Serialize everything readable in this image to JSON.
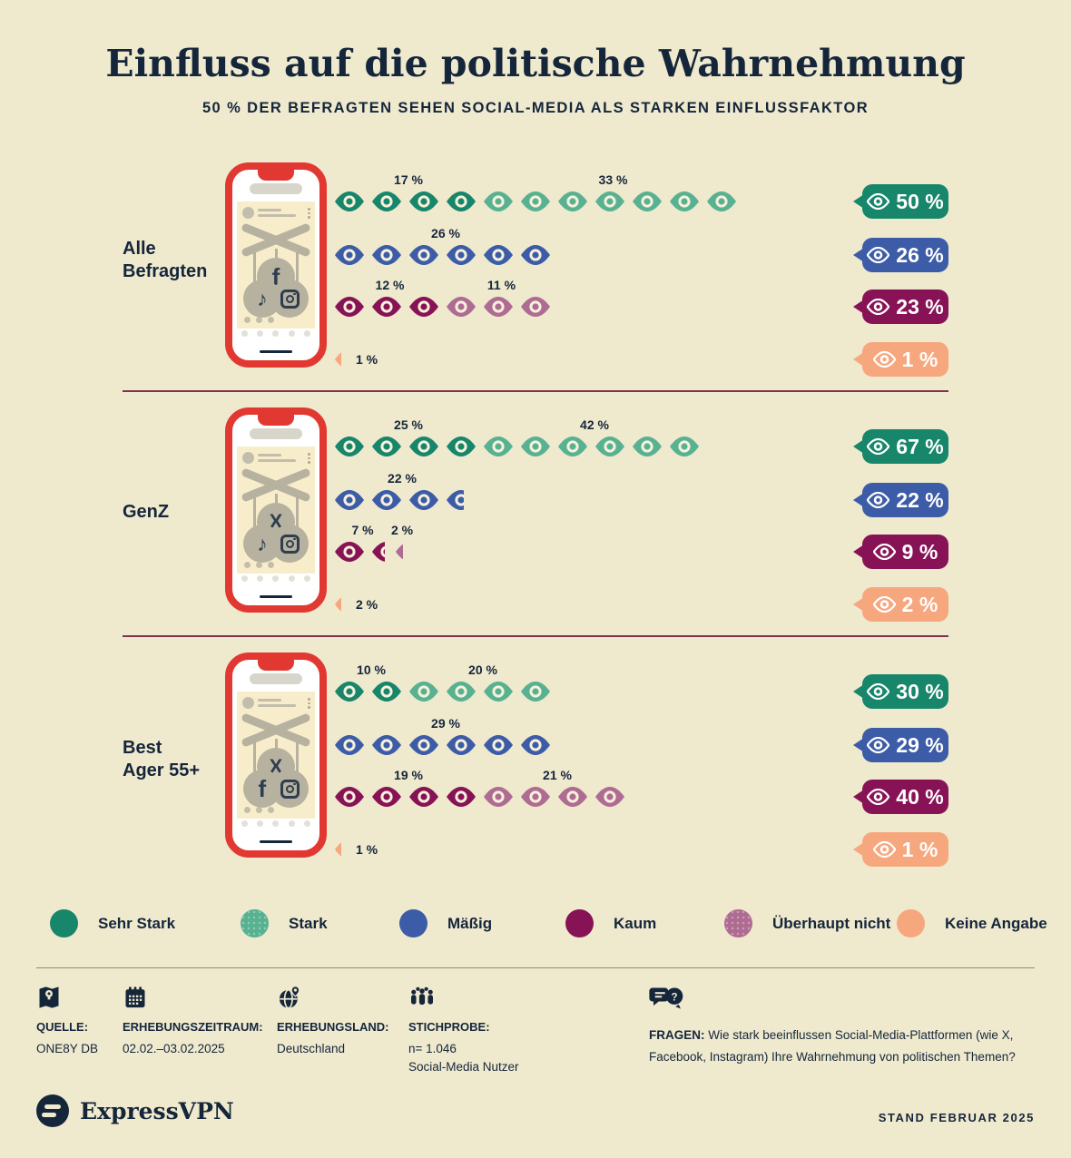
{
  "header": {
    "title": "Einfluss auf die politische Wahrnehmung",
    "subtitle": "50 % DER BEFRAGTEN SEHEN SOCIAL-MEDIA ALS STARKEN EINFLUSSFAKTOR"
  },
  "palette": {
    "background": "#EFE9CE",
    "ink": "#15263B",
    "sehr_stark": "#17866B",
    "stark": "#58B291",
    "maessig": "#3D5CA8",
    "kaum": "#871356",
    "ueberhaupt_nicht": "#AF6C92",
    "keine_angabe": "#F6A77D",
    "phone_red": "#E23832",
    "divider": "#823050"
  },
  "legend": [
    {
      "label": "Sehr Stark",
      "color_key": "sehr_stark",
      "dotted": false
    },
    {
      "label": "Stark",
      "color_key": "stark",
      "dotted": true
    },
    {
      "label": "Mäßig",
      "color_key": "maessig",
      "dotted": false
    },
    {
      "label": "Kaum",
      "color_key": "kaum",
      "dotted": false
    },
    {
      "label": "Überhaupt nicht",
      "color_key": "ueberhaupt_nicht",
      "dotted": true
    },
    {
      "label": "Keine Angabe",
      "color_key": "keine_angabe",
      "dotted": false
    }
  ],
  "groups": [
    {
      "name": "alle-befragten",
      "label_lines": [
        "Alle",
        "Befragten"
      ],
      "phone": {
        "top": "facebook",
        "left": "tiktok",
        "right": "instagram"
      },
      "rows": [
        {
          "badge_text": "50 %",
          "badge_color_key": "sehr_stark",
          "segments": [
            {
              "label": "17 %",
              "value": 17,
              "color_key": "sehr_stark",
              "full_eyes": 4,
              "partial_eye": 0,
              "label_pos": "above"
            },
            {
              "label": "33 %",
              "value": 33,
              "color_key": "stark",
              "full_eyes": 7,
              "partial_eye": 0,
              "label_pos": "above"
            }
          ]
        },
        {
          "badge_text": "26 %",
          "badge_color_key": "maessig",
          "segments": [
            {
              "label": "26 %",
              "value": 26,
              "color_key": "maessig",
              "full_eyes": 6,
              "partial_eye": 0,
              "label_pos": "above"
            }
          ]
        },
        {
          "badge_text": "23 %",
          "badge_color_key": "kaum",
          "segments": [
            {
              "label": "12 %",
              "value": 12,
              "color_key": "kaum",
              "full_eyes": 3,
              "partial_eye": 0,
              "label_pos": "above"
            },
            {
              "label": "11 %",
              "value": 11,
              "color_key": "ueberhaupt_nicht",
              "full_eyes": 3,
              "partial_eye": 0,
              "label_pos": "above"
            }
          ]
        },
        {
          "badge_text": "1 %",
          "badge_color_key": "keine_angabe",
          "segments": [
            {
              "label": "1 %",
              "value": 1,
              "color_key": "keine_angabe",
              "full_eyes": 0,
              "partial_eye": 0.24,
              "label_pos": "right"
            }
          ]
        }
      ]
    },
    {
      "name": "genz",
      "label_lines": [
        "GenZ"
      ],
      "phone": {
        "top": "x",
        "left": "tiktok",
        "right": "instagram"
      },
      "rows": [
        {
          "badge_text": "67 %",
          "badge_color_key": "sehr_stark",
          "segments": [
            {
              "label": "25 %",
              "value": 25,
              "color_key": "sehr_stark",
              "full_eyes": 4,
              "partial_eye": 0,
              "label_pos": "above"
            },
            {
              "label": "42 %",
              "value": 42,
              "color_key": "stark",
              "full_eyes": 6,
              "partial_eye": 0,
              "label_pos": "above"
            }
          ]
        },
        {
          "badge_text": "22 %",
          "badge_color_key": "maessig",
          "segments": [
            {
              "label": "22 %",
              "value": 22,
              "color_key": "maessig",
              "full_eyes": 3,
              "partial_eye": 0.6,
              "label_pos": "above"
            }
          ]
        },
        {
          "badge_text": "9 %",
          "badge_color_key": "kaum",
          "segments": [
            {
              "label": "7 %",
              "value": 7,
              "color_key": "kaum",
              "full_eyes": 1,
              "partial_eye": 0.45,
              "label_pos": "above"
            },
            {
              "label": "2 %",
              "value": 2,
              "color_key": "ueberhaupt_nicht",
              "full_eyes": 0,
              "partial_eye": 0.25,
              "label_pos": "above"
            }
          ]
        },
        {
          "badge_text": "2 %",
          "badge_color_key": "keine_angabe",
          "segments": [
            {
              "label": "2 %",
              "value": 2,
              "color_key": "keine_angabe",
              "full_eyes": 0,
              "partial_eye": 0.24,
              "label_pos": "right"
            }
          ]
        }
      ]
    },
    {
      "name": "best-ager-55",
      "label_lines": [
        "Best",
        "Ager 55+"
      ],
      "phone": {
        "top": "x",
        "left": "facebook",
        "right": "instagram"
      },
      "rows": [
        {
          "badge_text": "30 %",
          "badge_color_key": "sehr_stark",
          "segments": [
            {
              "label": "10 %",
              "value": 10,
              "color_key": "sehr_stark",
              "full_eyes": 2,
              "partial_eye": 0,
              "label_pos": "above"
            },
            {
              "label": "20 %",
              "value": 20,
              "color_key": "stark",
              "full_eyes": 4,
              "partial_eye": 0,
              "label_pos": "above"
            }
          ]
        },
        {
          "badge_text": "29 %",
          "badge_color_key": "maessig",
          "segments": [
            {
              "label": "29 %",
              "value": 29,
              "color_key": "maessig",
              "full_eyes": 6,
              "partial_eye": 0,
              "label_pos": "above"
            }
          ]
        },
        {
          "badge_text": "40 %",
          "badge_color_key": "kaum",
          "segments": [
            {
              "label": "19 %",
              "value": 19,
              "color_key": "kaum",
              "full_eyes": 4,
              "partial_eye": 0,
              "label_pos": "above"
            },
            {
              "label": "21 %",
              "value": 21,
              "color_key": "ueberhaupt_nicht",
              "full_eyes": 4,
              "partial_eye": 0,
              "label_pos": "above"
            }
          ]
        },
        {
          "badge_text": "1 %",
          "badge_color_key": "keine_angabe",
          "segments": [
            {
              "label": "1 %",
              "value": 1,
              "color_key": "keine_angabe",
              "full_eyes": 0,
              "partial_eye": 0.24,
              "label_pos": "right"
            }
          ]
        }
      ]
    }
  ],
  "chart_data": {
    "type": "bar",
    "title": "Einfluss auf die politische Wahrnehmung",
    "subtitle": "50 % der Befragten sehen Social-Media als starken Einflussfaktor",
    "unit": "%",
    "categories": [
      "Sehr Stark",
      "Stark",
      "Mäßig",
      "Kaum",
      "Überhaupt nicht",
      "Keine Angabe"
    ],
    "series": [
      {
        "name": "Alle Befragten",
        "values": [
          17,
          33,
          26,
          12,
          11,
          1
        ],
        "group_totals": {
          "stark_gesamt": 50,
          "maessig": 26,
          "kaum_gesamt": 23,
          "keine_angabe": 1
        }
      },
      {
        "name": "GenZ",
        "values": [
          25,
          42,
          22,
          7,
          2,
          2
        ],
        "group_totals": {
          "stark_gesamt": 67,
          "maessig": 22,
          "kaum_gesamt": 9,
          "keine_angabe": 2
        }
      },
      {
        "name": "Best Ager 55+",
        "values": [
          10,
          20,
          29,
          19,
          21,
          1
        ],
        "group_totals": {
          "stark_gesamt": 30,
          "maessig": 29,
          "kaum_gesamt": 40,
          "keine_angabe": 1
        }
      }
    ],
    "legend_position": "bottom"
  },
  "footer": {
    "items": [
      {
        "icon": "map",
        "label": "QUELLE:",
        "values": [
          "ONE8Y DB"
        ]
      },
      {
        "icon": "calendar",
        "label": "ERHEBUNGSZEITRAUM:",
        "values": [
          "02.02.–03.02.2025"
        ]
      },
      {
        "icon": "globe",
        "label": "ERHEBUNGSLAND:",
        "values": [
          "Deutschland"
        ]
      },
      {
        "icon": "people",
        "label": "STICHPROBE:",
        "values": [
          "n= 1.046",
          "Social-Media Nutzer"
        ]
      }
    ],
    "fragen_label": "FRAGEN:",
    "fragen_text": "Wie stark beeinflussen Social-Media-Plattformen (wie X, Facebook, Instagram) Ihre Wahrnehmung von politischen Themen?"
  },
  "branding": {
    "logo_text": "ExpressVPN",
    "stand": "STAND FEBRUAR 2025"
  }
}
